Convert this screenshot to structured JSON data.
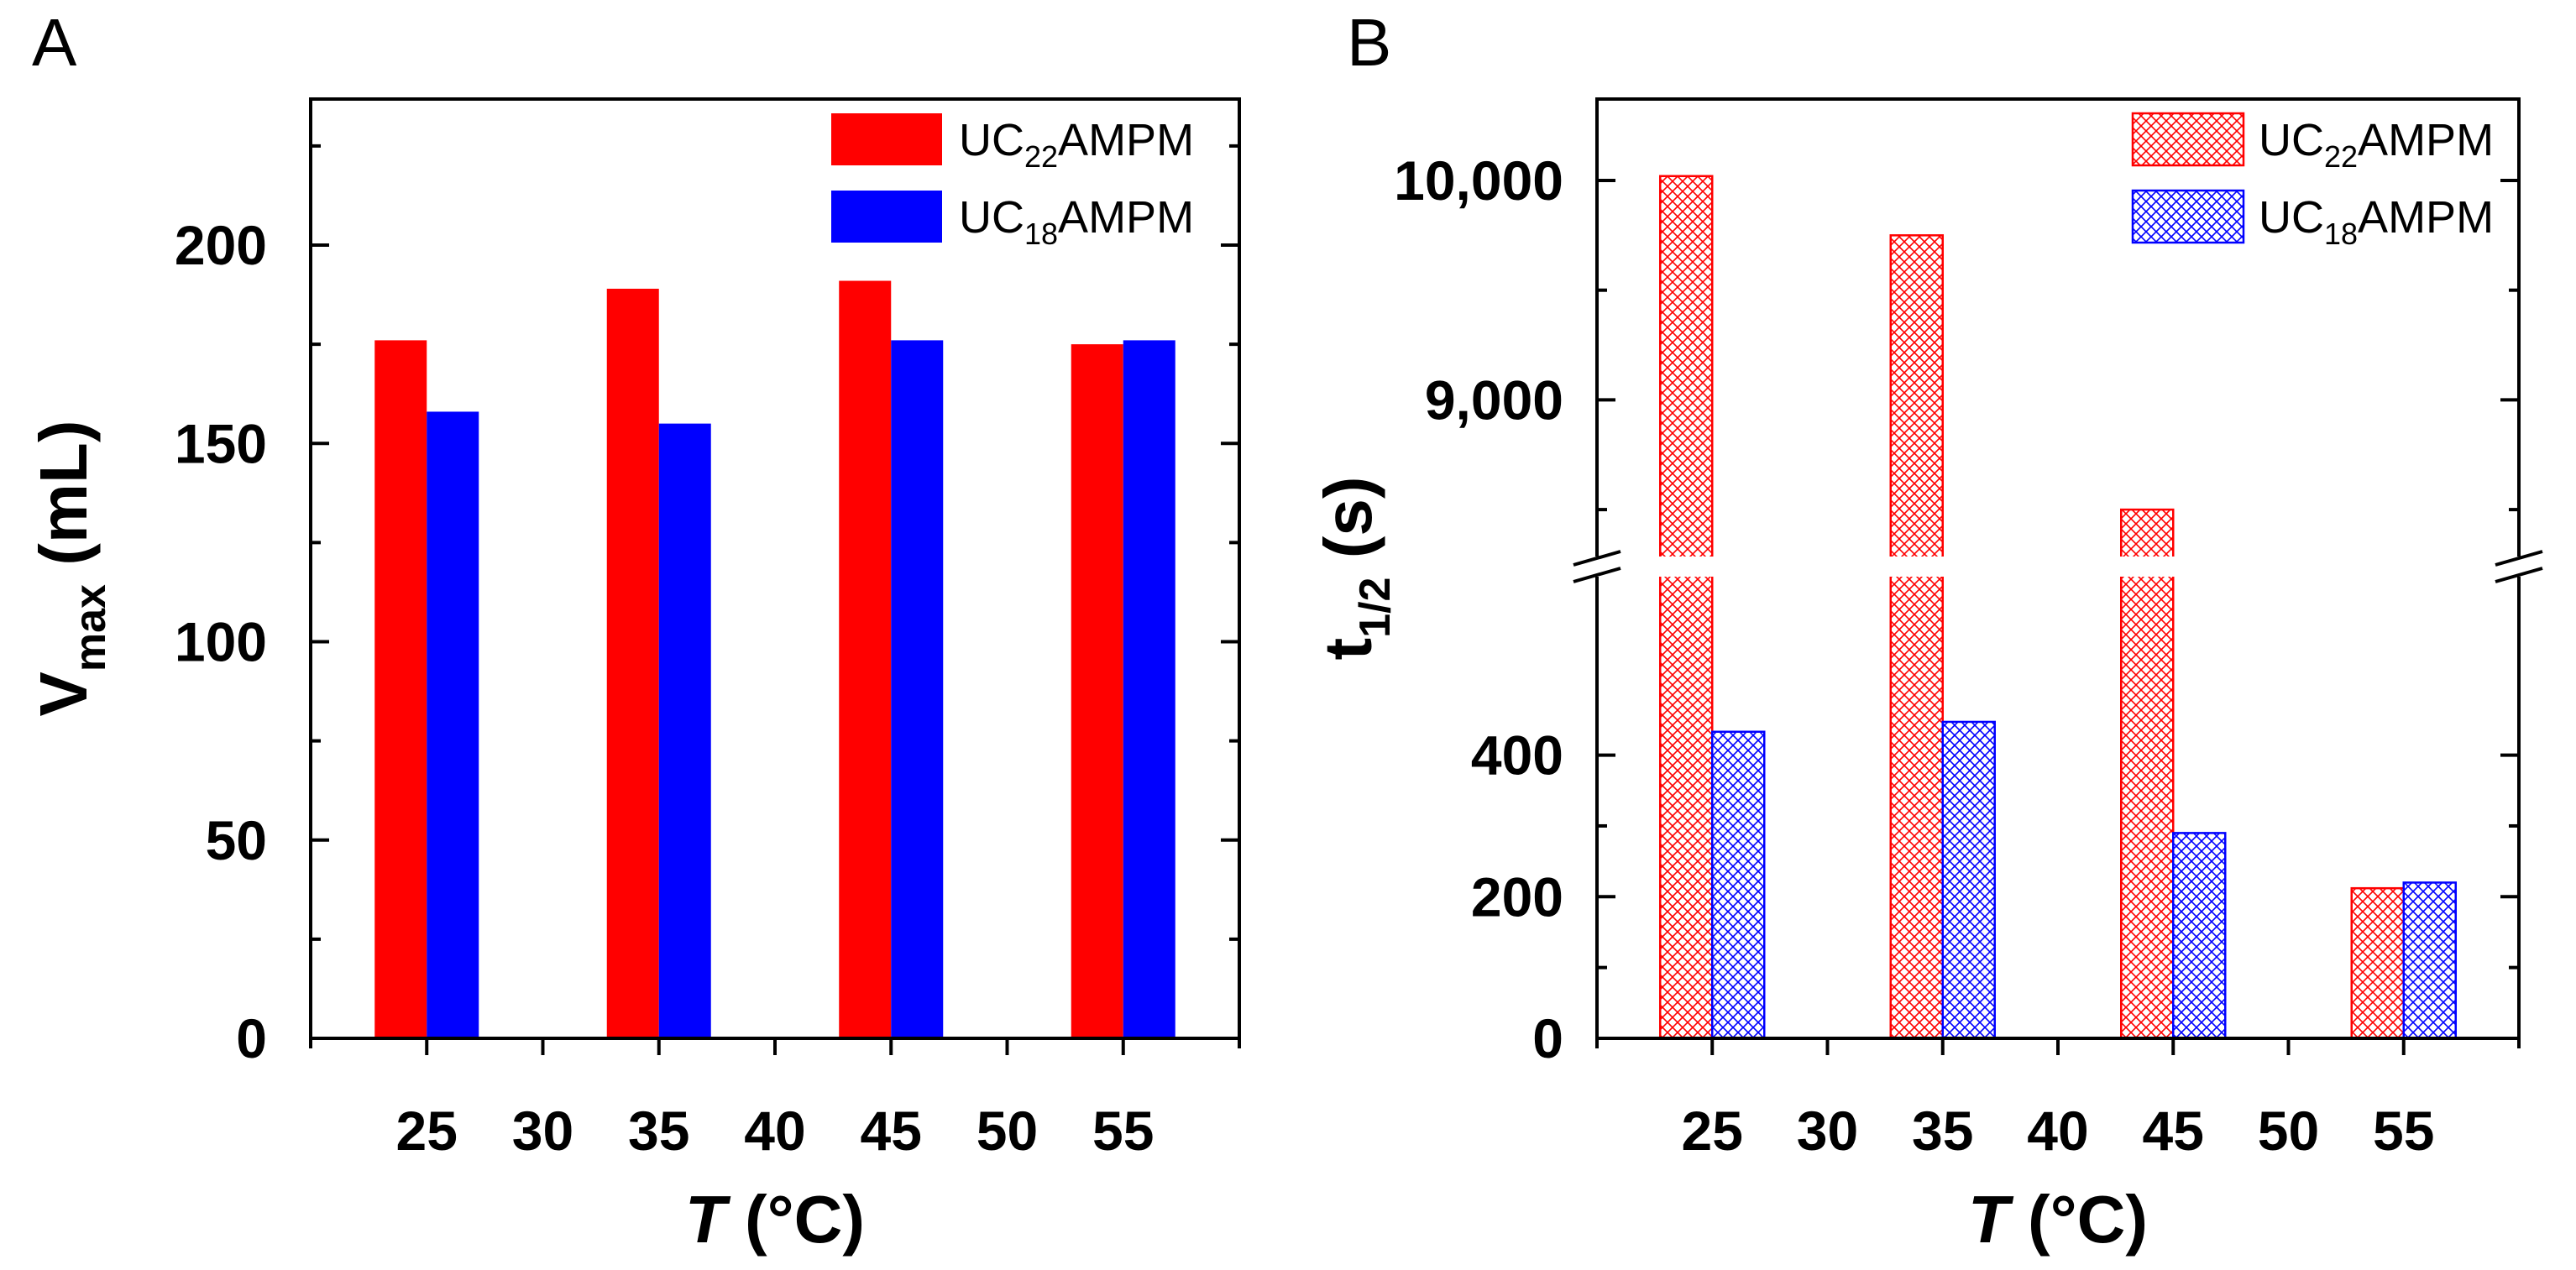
{
  "colors": {
    "uc22": "#ff0000",
    "uc18": "#0000ff",
    "axis": "#000000"
  },
  "chart_data": [
    {
      "panel": "A",
      "type": "bar",
      "categories": [
        "25",
        "35",
        "45",
        "55"
      ],
      "series": [
        {
          "name": "UC22AMPM",
          "label_main": "UC",
          "label_sub": "22",
          "label_tail": "AMPM",
          "values": [
            176,
            189,
            191,
            175
          ]
        },
        {
          "name": "UC18AMPM",
          "label_main": "UC",
          "label_sub": "18",
          "label_tail": "AMPM",
          "values": [
            158,
            155,
            176,
            176
          ]
        }
      ],
      "xlabel": {
        "main": "T",
        "tail": " (°C)"
      },
      "ylabel": {
        "main": "V",
        "sub": "max",
        "tail": " (mL)"
      },
      "xticks": [
        "25",
        "30",
        "35",
        "40",
        "45",
        "50",
        "55"
      ],
      "xlim": [
        20,
        60
      ],
      "yticks": [
        "0",
        "50",
        "100",
        "150",
        "200"
      ],
      "ylim": [
        0,
        200
      ],
      "grid": false,
      "legend": "top-right",
      "fill": "solid"
    },
    {
      "panel": "B",
      "type": "bar",
      "categories": [
        "25",
        "35",
        "45",
        "55"
      ],
      "series": [
        {
          "name": "UC22AMPM",
          "label_main": "UC",
          "label_sub": "22",
          "label_tail": "AMPM",
          "values": [
            10020,
            9750,
            8500,
            212
          ]
        },
        {
          "name": "UC18AMPM",
          "label_main": "UC",
          "label_sub": "18",
          "label_tail": "AMPM",
          "values": [
            433,
            447,
            290,
            220
          ]
        }
      ],
      "xlabel": {
        "main": "T",
        "tail": " (°C)"
      },
      "ylabel": {
        "main": "t",
        "sub": "1/2",
        "tail": " (s)"
      },
      "xticks": [
        "25",
        "30",
        "35",
        "40",
        "45",
        "50",
        "55"
      ],
      "xlim": [
        20,
        60
      ],
      "yticks_lower": [
        "0",
        "200",
        "400"
      ],
      "yticks_upper": [
        "9,000",
        "10,000"
      ],
      "y_break": {
        "lower_range": [
          0,
          500
        ],
        "upper_range": [
          8300,
          10400
        ]
      },
      "grid": false,
      "legend": "top-right",
      "fill": "cross-hatch"
    }
  ]
}
